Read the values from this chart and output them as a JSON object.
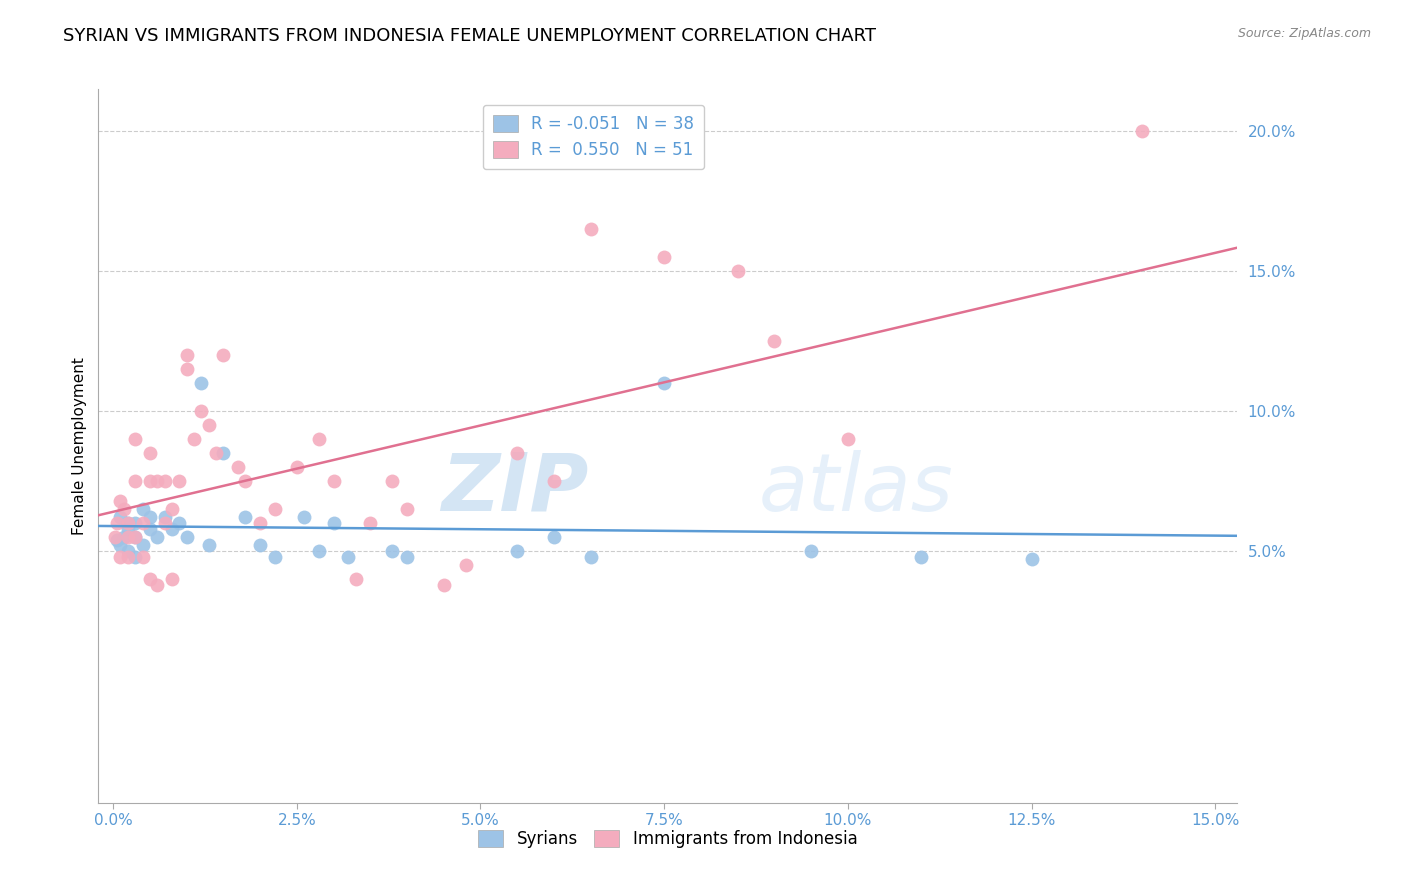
{
  "title": "SYRIAN VS IMMIGRANTS FROM INDONESIA FEMALE UNEMPLOYMENT CORRELATION CHART",
  "source": "Source: ZipAtlas.com",
  "ylabel": "Female Unemployment",
  "xlim": [
    -0.002,
    0.153
  ],
  "ylim": [
    -0.04,
    0.215
  ],
  "yticks": [
    0.05,
    0.1,
    0.15,
    0.2
  ],
  "ytick_labels": [
    "5.0%",
    "10.0%",
    "15.0%",
    "20.0%"
  ],
  "xtick_positions": [
    0.0,
    0.025,
    0.05,
    0.075,
    0.1,
    0.125,
    0.15
  ],
  "xtick_labels": [
    "0.0%",
    "2.5%",
    "5.0%",
    "7.5%",
    "10.0%",
    "12.5%",
    "15.0%"
  ],
  "grid_color": "#cccccc",
  "background_color": "#ffffff",
  "tick_color": "#5b9bd5",
  "series": [
    {
      "name": "Syrians",
      "R": -0.051,
      "N": 38,
      "color": "#9DC3E6",
      "edge_color": "#9DC3E6",
      "line_color": "#5b9bd5",
      "x": [
        0.0005,
        0.001,
        0.001,
        0.0015,
        0.002,
        0.002,
        0.002,
        0.003,
        0.003,
        0.003,
        0.004,
        0.004,
        0.005,
        0.005,
        0.006,
        0.007,
        0.008,
        0.009,
        0.01,
        0.012,
        0.013,
        0.015,
        0.018,
        0.02,
        0.022,
        0.026,
        0.028,
        0.03,
        0.032,
        0.038,
        0.04,
        0.055,
        0.06,
        0.065,
        0.075,
        0.095,
        0.11,
        0.125
      ],
      "y": [
        0.054,
        0.052,
        0.062,
        0.055,
        0.058,
        0.06,
        0.05,
        0.055,
        0.06,
        0.048,
        0.065,
        0.052,
        0.058,
        0.062,
        0.055,
        0.062,
        0.058,
        0.06,
        0.055,
        0.11,
        0.052,
        0.085,
        0.062,
        0.052,
        0.048,
        0.062,
        0.05,
        0.06,
        0.048,
        0.05,
        0.048,
        0.05,
        0.055,
        0.048,
        0.11,
        0.05,
        0.048,
        0.047
      ]
    },
    {
      "name": "Immigrants from Indonesia",
      "R": 0.55,
      "N": 51,
      "color": "#F4ACBE",
      "edge_color": "#F4ACBE",
      "line_color": "#e07090",
      "x": [
        0.0003,
        0.0005,
        0.001,
        0.001,
        0.0015,
        0.002,
        0.002,
        0.002,
        0.003,
        0.003,
        0.003,
        0.004,
        0.004,
        0.005,
        0.005,
        0.005,
        0.006,
        0.006,
        0.007,
        0.007,
        0.008,
        0.008,
        0.009,
        0.01,
        0.01,
        0.011,
        0.012,
        0.013,
        0.014,
        0.015,
        0.017,
        0.018,
        0.02,
        0.022,
        0.025,
        0.028,
        0.03,
        0.033,
        0.035,
        0.038,
        0.04,
        0.045,
        0.048,
        0.055,
        0.06,
        0.065,
        0.075,
        0.085,
        0.09,
        0.1,
        0.14
      ],
      "y": [
        0.055,
        0.06,
        0.048,
        0.068,
        0.065,
        0.055,
        0.048,
        0.06,
        0.09,
        0.075,
        0.055,
        0.06,
        0.048,
        0.075,
        0.04,
        0.085,
        0.075,
        0.038,
        0.06,
        0.075,
        0.065,
        0.04,
        0.075,
        0.12,
        0.115,
        0.09,
        0.1,
        0.095,
        0.085,
        0.12,
        0.08,
        0.075,
        0.06,
        0.065,
        0.08,
        0.09,
        0.075,
        0.04,
        0.06,
        0.075,
        0.065,
        0.038,
        0.045,
        0.085,
        0.075,
        0.165,
        0.155,
        0.15,
        0.125,
        0.09,
        0.2
      ]
    }
  ],
  "watermark_zip": "ZIP",
  "watermark_atlas": "atlas",
  "title_fontsize": 13,
  "axis_label_fontsize": 11,
  "tick_fontsize": 11,
  "legend_fontsize": 12,
  "marker_size": 100
}
